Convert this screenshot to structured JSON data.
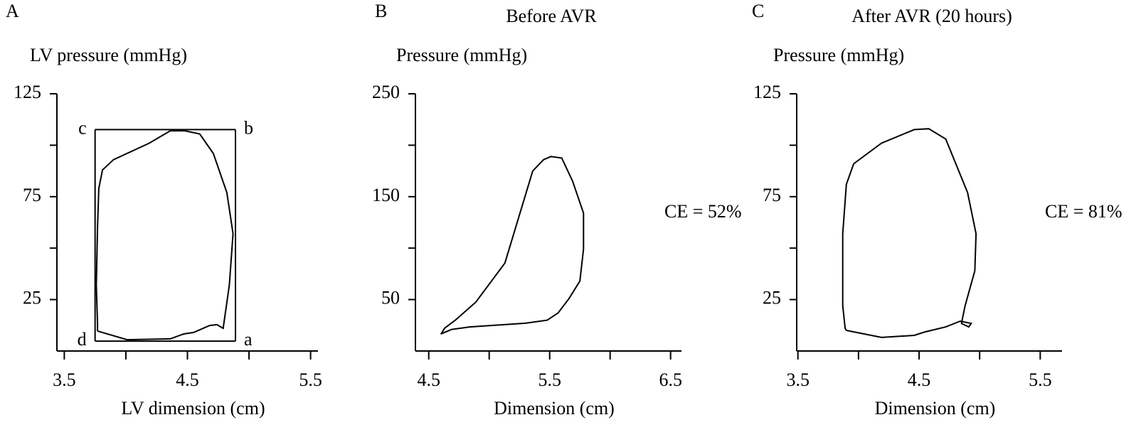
{
  "chart_data": [
    {
      "type": "line",
      "panel_label": "A",
      "ylabel": "LV pressure (mmHg)",
      "xlabel": "LV dimension (cm)",
      "xlim": [
        3.44,
        5.56
      ],
      "ylim": [
        0,
        125
      ],
      "xticks": [
        3.5,
        4.5,
        5.5
      ],
      "x_minor_ticks": [
        4,
        5
      ],
      "yticks": [
        25,
        75,
        125
      ],
      "y_minor_ticks": [
        50,
        100
      ],
      "series": [
        {
          "color": "#000000",
          "x": [
            3.77,
            4.01,
            4.36,
            4.47,
            4.55,
            4.68,
            4.74,
            4.79,
            4.84,
            4.87,
            4.82,
            4.71,
            4.6,
            4.48,
            4.36,
            4.19,
            3.9,
            3.81,
            3.78,
            3.77,
            3.76,
            3.77,
            3.77
          ],
          "values": [
            9.7,
            5.5,
            5.9,
            8.3,
            9,
            12.4,
            12.8,
            11,
            32,
            57,
            77,
            96,
            105.5,
            107,
            107,
            101,
            93,
            88,
            79,
            60,
            32,
            13.4,
            9.7
          ]
        }
      ],
      "box": {
        "x": [
          3.75,
          4.89
        ],
        "y": [
          4.8,
          107.6
        ],
        "corner_labels": [
          "a",
          "b",
          "c",
          "d"
        ]
      }
    },
    {
      "type": "line",
      "panel_label": "B",
      "title": "Before AVR",
      "ylabel": "Pressure (mmHg)",
      "xlabel": "Dimension (cm)",
      "xlim": [
        4.39,
        6.59
      ],
      "ylim": [
        0,
        250
      ],
      "xticks": [
        4.5,
        5.5,
        6.5
      ],
      "x_minor_ticks": [
        5,
        6
      ],
      "yticks": [
        50,
        150,
        250
      ],
      "y_minor_ticks": [
        100,
        200
      ],
      "annotation": "CE = 52%",
      "series": [
        {
          "color": "#000000",
          "x": [
            4.61,
            4.63,
            4.72,
            4.89,
            5.13,
            5.36,
            5.45,
            5.51,
            5.6,
            5.69,
            5.78,
            5.78,
            5.75,
            5.66,
            5.57,
            5.48,
            5.3,
            4.84,
            4.69,
            4.63,
            4.6,
            4.61
          ],
          "values": [
            17.9,
            22,
            30,
            47.6,
            85.5,
            175,
            186,
            189,
            187.6,
            165,
            134,
            99,
            68,
            51,
            37,
            30,
            27,
            23.4,
            21,
            18,
            16.5,
            17.9
          ]
        }
      ]
    },
    {
      "type": "line",
      "panel_label": "C",
      "title": "After AVR (20 hours)",
      "ylabel": "Pressure (mmHg)",
      "xlabel": "Dimension (cm)",
      "xlim": [
        3.49,
        5.68
      ],
      "ylim": [
        0,
        125
      ],
      "xticks": [
        3.5,
        4.5,
        5.5
      ],
      "x_minor_ticks": [
        4,
        5
      ],
      "yticks": [
        25,
        75,
        125
      ],
      "y_minor_ticks": [
        50,
        100
      ],
      "annotation": "CE = 81%",
      "series": [
        {
          "color": "#000000",
          "x": [
            3.9,
            4.19,
            4.46,
            4.55,
            4.72,
            4.84,
            4.93,
            4.91,
            4.85,
            4.88,
            4.96,
            4.97,
            4.9,
            4.72,
            4.58,
            4.46,
            4.19,
            3.96,
            3.9,
            3.87,
            3.87,
            3.89,
            3.9
          ],
          "values": [
            10,
            6.6,
            7.6,
            9.3,
            11.7,
            14.5,
            13.4,
            11.7,
            13.4,
            22,
            39,
            57,
            77,
            103,
            108,
            107.6,
            101,
            91,
            81,
            57,
            22,
            11,
            10
          ]
        }
      ]
    }
  ]
}
